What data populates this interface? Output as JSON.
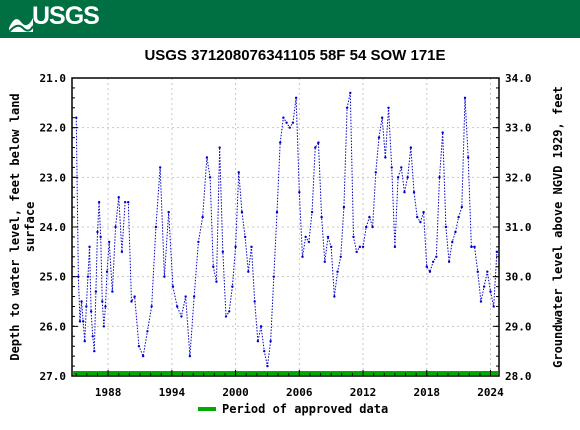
{
  "header": {
    "logo_text": "USGS",
    "color": "#006f41"
  },
  "chart_data": {
    "type": "line",
    "title": "USGS 371208076341105 58F 54 SOW 171E",
    "ylabel_left": "Depth to water level, feet below land surface",
    "ylabel_left_lines": [
      "Depth to water level, feet below land",
      "surface"
    ],
    "ylabel_right": "Groundwater level above NGVD 1929, feet",
    "x_ticks": [
      "1988",
      "1994",
      "2000",
      "2006",
      "2012",
      "2018",
      "2024"
    ],
    "x_tick_values": [
      1988,
      1994,
      2000,
      2006,
      2012,
      2018,
      2024
    ],
    "xlim": [
      1984.6,
      2024.8
    ],
    "y_left_ticks": [
      "21.0",
      "22.0",
      "23.0",
      "24.0",
      "25.0",
      "26.0",
      "27.0"
    ],
    "y_left_lim": [
      21.0,
      27.0
    ],
    "y_left_inverted": true,
    "y_right_ticks": [
      "34.0",
      "33.0",
      "32.0",
      "31.0",
      "30.0",
      "29.0",
      "28.0"
    ],
    "y_right_lim": [
      28.0,
      34.0
    ],
    "series": [
      {
        "color": "#0000cc",
        "style": "dotted-with-points",
        "x": [
          1985.0,
          1985.2,
          1985.35,
          1985.5,
          1985.65,
          1985.8,
          1985.95,
          1986.1,
          1986.25,
          1986.4,
          1986.55,
          1986.7,
          1986.85,
          1987.0,
          1987.15,
          1987.3,
          1987.45,
          1987.6,
          1987.75,
          1987.9,
          1988.1,
          1988.4,
          1988.7,
          1989.0,
          1989.3,
          1989.6,
          1989.9,
          1990.2,
          1990.5,
          1990.9,
          1991.3,
          1991.7,
          1992.1,
          1992.5,
          1992.9,
          1993.3,
          1993.7,
          1994.1,
          1994.5,
          1994.9,
          1995.3,
          1995.7,
          1996.1,
          1996.5,
          1996.9,
          1997.3,
          1997.6,
          1997.9,
          1998.2,
          1998.5,
          1998.8,
          1999.1,
          1999.4,
          1999.7,
          2000.0,
          2000.3,
          2000.6,
          2000.9,
          2001.2,
          2001.5,
          2001.8,
          2002.1,
          2002.4,
          2002.7,
          2003.0,
          2003.3,
          2003.6,
          2003.9,
          2004.2,
          2004.5,
          2004.8,
          2005.1,
          2005.4,
          2005.7,
          2006.0,
          2006.3,
          2006.6,
          2006.9,
          2007.2,
          2007.5,
          2007.8,
          2008.1,
          2008.4,
          2008.7,
          2009.0,
          2009.3,
          2009.6,
          2009.9,
          2010.2,
          2010.5,
          2010.8,
          2011.1,
          2011.4,
          2011.7,
          2012.0,
          2012.3,
          2012.6,
          2012.9,
          2013.2,
          2013.5,
          2013.8,
          2014.1,
          2014.4,
          2014.7,
          2015.0,
          2015.3,
          2015.6,
          2015.9,
          2016.2,
          2016.5,
          2016.8,
          2017.1,
          2017.4,
          2017.7,
          2018.0,
          2018.3,
          2018.6,
          2018.9,
          2019.2,
          2019.5,
          2019.8,
          2020.1,
          2020.4,
          2020.7,
          2021.0,
          2021.3,
          2021.6,
          2021.9,
          2022.2,
          2022.5,
          2022.8,
          2023.1,
          2023.4,
          2023.7,
          2024.0,
          2024.3,
          2024.6
        ],
        "y": [
          21.8,
          25.0,
          25.9,
          25.5,
          25.9,
          26.3,
          25.6,
          25.0,
          24.4,
          25.7,
          26.2,
          26.5,
          25.3,
          24.1,
          23.5,
          24.2,
          25.5,
          26.0,
          25.6,
          24.9,
          24.3,
          25.3,
          24.0,
          23.4,
          24.5,
          23.5,
          23.5,
          25.5,
          25.4,
          26.4,
          26.6,
          26.1,
          25.6,
          24.0,
          22.8,
          25.0,
          23.7,
          25.2,
          25.6,
          25.8,
          25.4,
          26.6,
          25.4,
          24.3,
          23.8,
          22.6,
          23.0,
          24.8,
          25.1,
          22.4,
          24.5,
          25.8,
          25.7,
          25.2,
          24.4,
          22.9,
          23.7,
          24.2,
          24.9,
          24.4,
          25.5,
          26.3,
          26.0,
          26.5,
          26.8,
          26.3,
          25.0,
          23.7,
          22.3,
          21.8,
          21.9,
          22.0,
          21.9,
          21.4,
          23.3,
          24.6,
          24.2,
          24.3,
          23.7,
          22.4,
          22.3,
          23.8,
          24.7,
          24.2,
          24.4,
          25.4,
          24.9,
          24.6,
          23.6,
          21.6,
          21.3,
          24.2,
          24.5,
          24.4,
          24.4,
          24.0,
          23.8,
          24.0,
          22.9,
          22.2,
          21.8,
          22.6,
          21.6,
          22.8,
          24.4,
          23.0,
          22.8,
          23.3,
          23.0,
          22.4,
          23.3,
          23.8,
          23.9,
          23.7,
          24.8,
          24.9,
          24.7,
          24.6,
          23.0,
          22.1,
          24.0,
          24.7,
          24.3,
          24.1,
          23.8,
          23.6,
          21.4,
          22.6,
          24.4,
          24.4,
          24.9,
          25.5,
          25.2,
          24.9,
          25.3,
          25.6,
          24.5
        ],
        "y_units": "feet below land surface"
      }
    ],
    "approved_period": {
      "color": "#00aa00",
      "x_start": 1984.7,
      "x_end": 2024.7
    },
    "legend": {
      "label": "Period of approved data",
      "placement": "bottom-center"
    },
    "grid": true
  }
}
